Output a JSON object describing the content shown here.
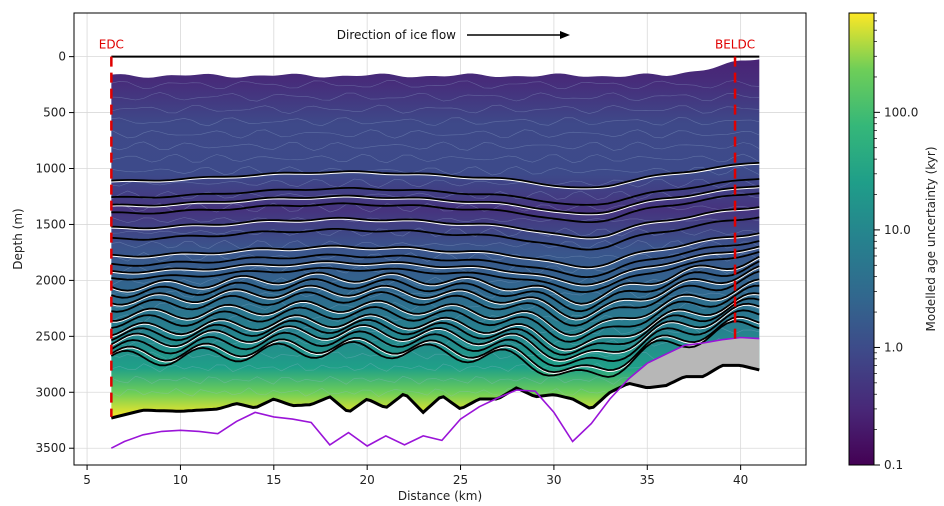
{
  "chart_data": {
    "type": "heatmap",
    "xlabel": "Distance (km)",
    "ylabel": "Depth (m)",
    "xlim": [
      4.3,
      43.5
    ],
    "ylim": [
      3650,
      -390
    ],
    "x_ticks": [
      5,
      10,
      15,
      20,
      25,
      30,
      35,
      40
    ],
    "y_ticks": [
      0,
      500,
      1000,
      1500,
      2000,
      2500,
      3000,
      3500
    ],
    "grid": true,
    "title": "",
    "annotations": {
      "flow_label": "Direction of ice flow",
      "left_site": "EDC",
      "right_site": "BELDC"
    },
    "site_positions_km": {
      "left_site": 6.3,
      "right_site": 39.7
    },
    "colorbar": {
      "label": "Modelled age uncertainty (kyr)",
      "scale": "log",
      "range": [
        0.1,
        700
      ],
      "tick_labels": [
        "0.1",
        "1.0",
        "10.0",
        "100.0"
      ],
      "tick_values": [
        0.1,
        1.0,
        10.0,
        100.0
      ],
      "colormap": "viridis"
    },
    "ice_surface_depth_m": 0,
    "x_range_km": [
      6.3,
      41.0
    ],
    "isochrone_depths_left_m": [
      1070,
      1220,
      1290,
      1360,
      1490,
      1590,
      1740,
      1820,
      1880,
      1940,
      2010,
      2070,
      2130,
      2190,
      2270,
      2330,
      2400,
      2450,
      2500,
      2560,
      2620,
      2660
    ],
    "bed": {
      "x": [
        6.3,
        8,
        10,
        12,
        13,
        14,
        15,
        16,
        17,
        18,
        19,
        20,
        21,
        22,
        23,
        24,
        25,
        26,
        27,
        28,
        29,
        30,
        31,
        32,
        33,
        34,
        35,
        36,
        37,
        38,
        39,
        40,
        41
      ],
      "depth": [
        3230,
        3160,
        3170,
        3150,
        3100,
        3140,
        3060,
        3120,
        3110,
        3040,
        3180,
        3060,
        3140,
        3010,
        3180,
        3030,
        3150,
        3060,
        3060,
        2960,
        3040,
        3020,
        3060,
        3150,
        3000,
        2920,
        2960,
        2940,
        2860,
        2860,
        2760,
        2760,
        2800
      ]
    },
    "purple_line": {
      "x": [
        6.3,
        7,
        8,
        9,
        10,
        11,
        12,
        13,
        14,
        15,
        16,
        17,
        18,
        19,
        20,
        21,
        22,
        23,
        24,
        25,
        26,
        27,
        28,
        29,
        30,
        31,
        32,
        33,
        34,
        35,
        36,
        37,
        38,
        39,
        40,
        41
      ],
      "depth": [
        3500,
        3440,
        3380,
        3350,
        3340,
        3350,
        3370,
        3260,
        3180,
        3220,
        3240,
        3270,
        3470,
        3360,
        3480,
        3390,
        3470,
        3390,
        3430,
        3240,
        3130,
        3050,
        2980,
        2990,
        3180,
        3440,
        3280,
        3060,
        2880,
        2740,
        2660,
        2580,
        2560,
        2530,
        2510,
        2520
      ]
    },
    "colors": {
      "isochrone_black": "#000000",
      "isochrone_white": "#ffffff",
      "site_marker": "#e00000",
      "purple_line": "#9a14d8",
      "below_bed_fill": "#b7b7b7"
    }
  }
}
